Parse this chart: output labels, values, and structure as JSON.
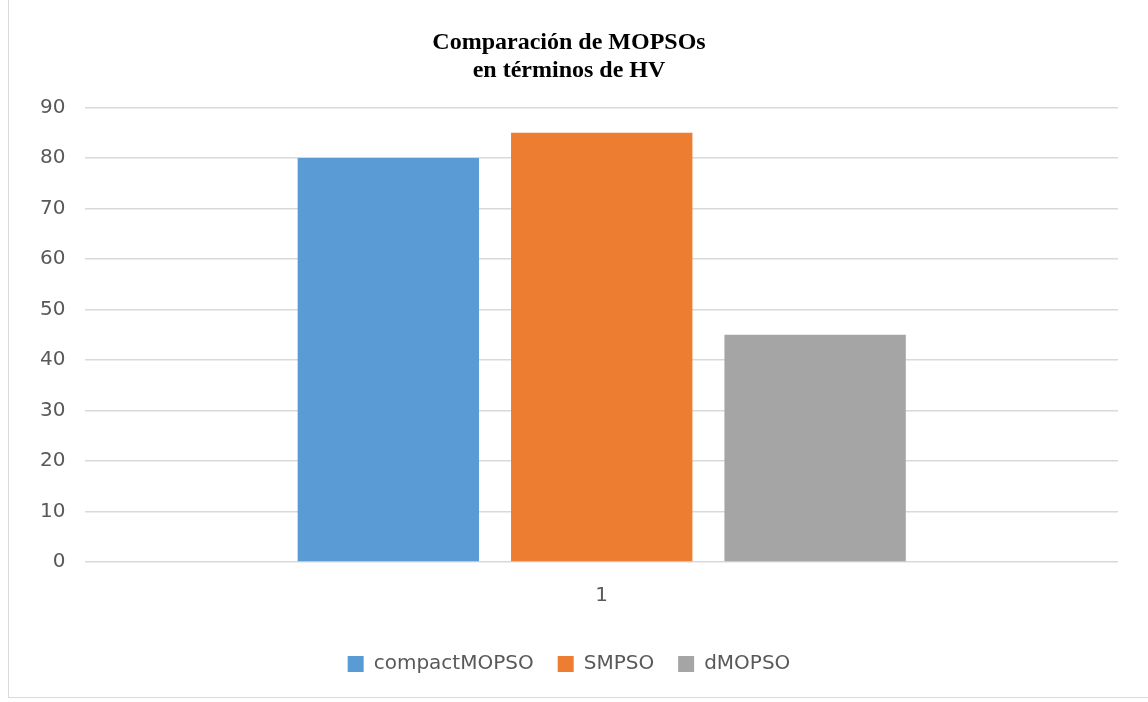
{
  "chart_data": {
    "type": "bar",
    "title": "Comparación de MOPSOs\nen términos de HV",
    "categories": [
      "1"
    ],
    "series": [
      {
        "name": "compactMOPSO",
        "color": "#5b9bd5",
        "values": [
          80
        ]
      },
      {
        "name": "SMPSO",
        "color": "#ed7d31",
        "values": [
          85
        ]
      },
      {
        "name": "dMOPSO",
        "color": "#a5a5a5",
        "values": [
          45
        ]
      }
    ],
    "ylim": [
      0,
      90
    ],
    "yticks": [
      0,
      10,
      20,
      30,
      40,
      50,
      60,
      70,
      80,
      90
    ],
    "grid": "y",
    "legend": "bottom"
  }
}
